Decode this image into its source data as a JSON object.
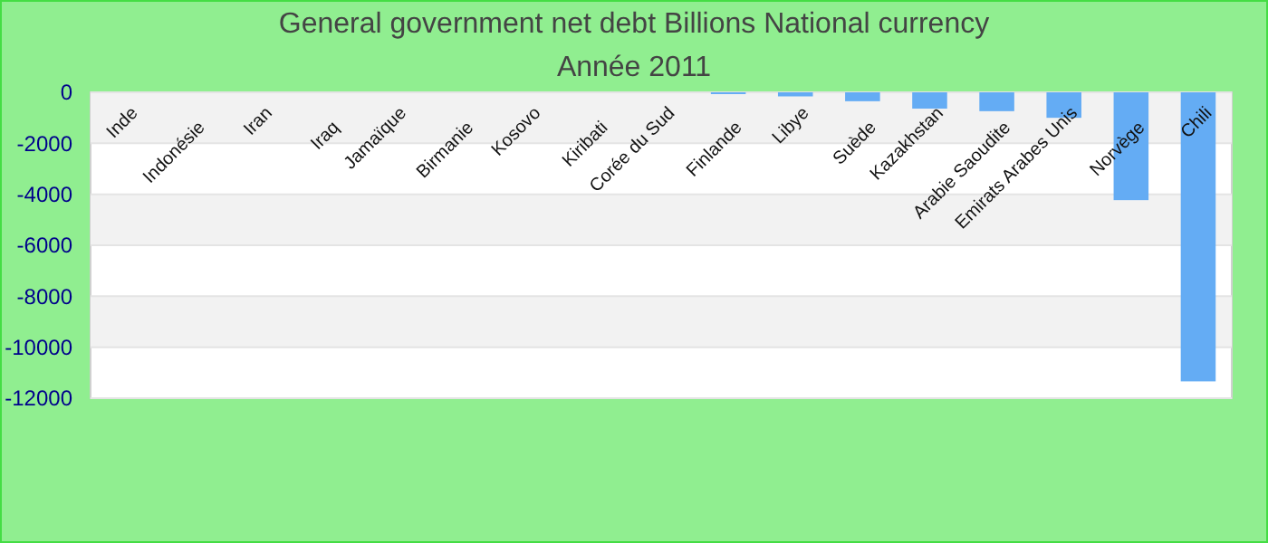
{
  "chart_data": {
    "type": "bar",
    "title": "General government net debt Billions National currency",
    "subtitle": "Année 2011",
    "categories": [
      "Inde",
      "Indonésie",
      "Iran",
      "Iraq",
      "Jamaïque",
      "Birmanie",
      "Kosovo",
      "Kiribati",
      "Corée du Sud",
      "Finlande",
      "Libye",
      "Suède",
      "Kazakhstan",
      "Arabie Saoudite",
      "Emirats Arabes Unis",
      "Norvège",
      "Chili"
    ],
    "values": [
      0,
      0,
      0,
      0,
      0,
      0,
      0,
      0,
      0,
      -70,
      -160,
      -350,
      -640,
      -740,
      -1000,
      -4230,
      -11340
    ],
    "color": "#64acf4",
    "ylim": [
      -12000,
      0
    ],
    "yticks": [
      0,
      -2000,
      -4000,
      -6000,
      -8000,
      -10000,
      -12000
    ],
    "grid": "y"
  }
}
